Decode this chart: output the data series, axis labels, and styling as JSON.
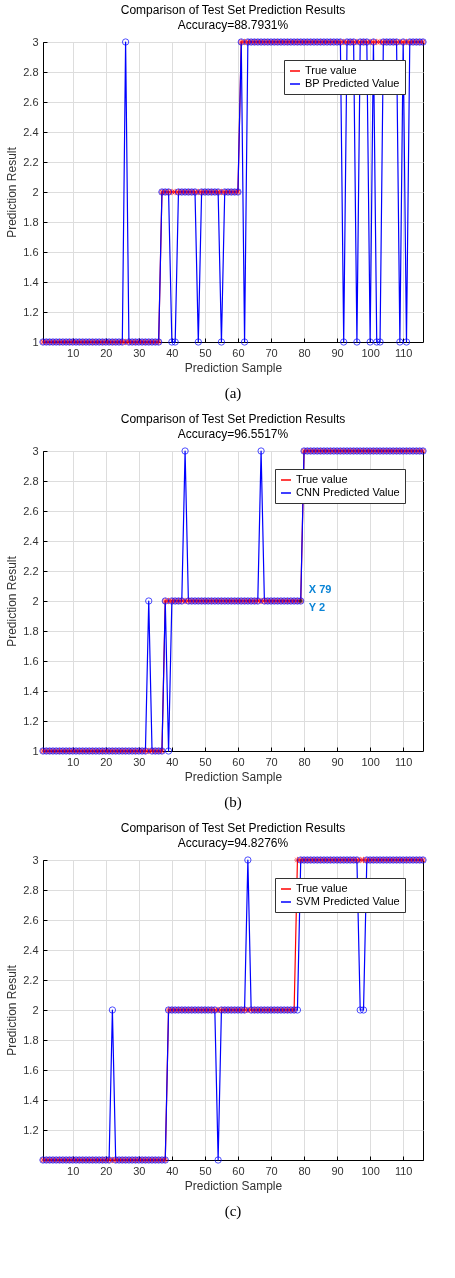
{
  "chart_data": [
    {
      "type": "line",
      "title": "Comparison of Test Set Prediction Results",
      "subtitle": "Accuracy=88.7931%",
      "xlabel": "Prediction Sample",
      "ylabel": "Prediction Result",
      "annotations": [
        "(a)"
      ],
      "legend": "top right",
      "grid": true,
      "xlim": [
        1,
        116
      ],
      "xticks": [
        10,
        20,
        30,
        40,
        50,
        60,
        70,
        80,
        90,
        100,
        110
      ],
      "ylim": [
        1,
        3
      ],
      "yticks": [
        1,
        1.2,
        1.4,
        1.6,
        1.8,
        2,
        2.2,
        2.4,
        2.6,
        2.8,
        3
      ],
      "x": [
        1,
        2,
        3,
        4,
        5,
        6,
        7,
        8,
        9,
        10,
        11,
        12,
        13,
        14,
        15,
        16,
        17,
        18,
        19,
        20,
        21,
        22,
        23,
        24,
        25,
        26,
        27,
        28,
        29,
        30,
        31,
        32,
        33,
        34,
        35,
        36,
        37,
        38,
        39,
        40,
        41,
        42,
        43,
        44,
        45,
        46,
        47,
        48,
        49,
        50,
        51,
        52,
        53,
        54,
        55,
        56,
        57,
        58,
        59,
        60,
        61,
        62,
        63,
        64,
        65,
        66,
        67,
        68,
        69,
        70,
        71,
        72,
        73,
        74,
        75,
        76,
        77,
        78,
        79,
        80,
        81,
        82,
        83,
        84,
        85,
        86,
        87,
        88,
        89,
        90,
        91,
        92,
        93,
        94,
        95,
        96,
        97,
        98,
        99,
        100,
        101,
        102,
        103,
        104,
        105,
        106,
        107,
        108,
        109,
        110,
        111,
        112,
        113,
        114,
        115,
        116
      ],
      "series": [
        {
          "name": "True value",
          "color": "#ff0000",
          "marker": "cross",
          "values": [
            1,
            1,
            1,
            1,
            1,
            1,
            1,
            1,
            1,
            1,
            1,
            1,
            1,
            1,
            1,
            1,
            1,
            1,
            1,
            1,
            1,
            1,
            1,
            1,
            1,
            1,
            1,
            1,
            1,
            1,
            1,
            1,
            1,
            1,
            1,
            1,
            2,
            2,
            2,
            2,
            2,
            2,
            2,
            2,
            2,
            2,
            2,
            2,
            2,
            2,
            2,
            2,
            2,
            2,
            2,
            2,
            2,
            2,
            2,
            2,
            3,
            3,
            3,
            3,
            3,
            3,
            3,
            3,
            3,
            3,
            3,
            3,
            3,
            3,
            3,
            3,
            3,
            3,
            3,
            3,
            3,
            3,
            3,
            3,
            3,
            3,
            3,
            3,
            3,
            3,
            3,
            3,
            3,
            3,
            3,
            3,
            3,
            3,
            3,
            3,
            3,
            3,
            3,
            3,
            3,
            3,
            3,
            3,
            3,
            3,
            3,
            3,
            3,
            3,
            3,
            3
          ]
        },
        {
          "name": "BP Predicted Value",
          "color": "#0000ff",
          "marker": "circle",
          "values": [
            1,
            1,
            1,
            1,
            1,
            1,
            1,
            1,
            1,
            1,
            1,
            1,
            1,
            1,
            1,
            1,
            1,
            1,
            1,
            1,
            1,
            1,
            1,
            1,
            1,
            3,
            1,
            1,
            1,
            1,
            1,
            1,
            1,
            1,
            1,
            1,
            2,
            2,
            2,
            1,
            1,
            2,
            2,
            2,
            2,
            2,
            2,
            1,
            2,
            2,
            2,
            2,
            2,
            2,
            1,
            2,
            2,
            2,
            2,
            2,
            3,
            1,
            3,
            3,
            3,
            3,
            3,
            3,
            3,
            3,
            3,
            3,
            3,
            3,
            3,
            3,
            3,
            3,
            3,
            3,
            3,
            3,
            3,
            3,
            3,
            3,
            3,
            3,
            3,
            3,
            3,
            1,
            3,
            3,
            3,
            1,
            3,
            3,
            3,
            1,
            3,
            1,
            1,
            3,
            3,
            3,
            3,
            3,
            1,
            3,
            1,
            3,
            3,
            3,
            3,
            3
          ]
        }
      ]
    },
    {
      "type": "line",
      "title": "Comparison of Test Set Prediction Results",
      "subtitle": "Accuracy=96.5517%",
      "xlabel": "Prediction Sample",
      "ylabel": "Prediction Result",
      "annotations": [
        "(b)",
        {
          "text": "X 79\nY 2",
          "x": 79,
          "y": 2
        }
      ],
      "legend": "top right",
      "grid": true,
      "xlim": [
        1,
        116
      ],
      "xticks": [
        10,
        20,
        30,
        40,
        50,
        60,
        70,
        80,
        90,
        100,
        110
      ],
      "ylim": [
        1,
        3
      ],
      "yticks": [
        1,
        1.2,
        1.4,
        1.6,
        1.8,
        2,
        2.2,
        2.4,
        2.6,
        2.8,
        3
      ],
      "x": [
        1,
        2,
        3,
        4,
        5,
        6,
        7,
        8,
        9,
        10,
        11,
        12,
        13,
        14,
        15,
        16,
        17,
        18,
        19,
        20,
        21,
        22,
        23,
        24,
        25,
        26,
        27,
        28,
        29,
        30,
        31,
        32,
        33,
        34,
        35,
        36,
        37,
        38,
        39,
        40,
        41,
        42,
        43,
        44,
        45,
        46,
        47,
        48,
        49,
        50,
        51,
        52,
        53,
        54,
        55,
        56,
        57,
        58,
        59,
        60,
        61,
        62,
        63,
        64,
        65,
        66,
        67,
        68,
        69,
        70,
        71,
        72,
        73,
        74,
        75,
        76,
        77,
        78,
        79,
        80,
        81,
        82,
        83,
        84,
        85,
        86,
        87,
        88,
        89,
        90,
        91,
        92,
        93,
        94,
        95,
        96,
        97,
        98,
        99,
        100,
        101,
        102,
        103,
        104,
        105,
        106,
        107,
        108,
        109,
        110,
        111,
        112,
        113,
        114,
        115,
        116
      ],
      "series": [
        {
          "name": "True value",
          "color": "#ff0000",
          "marker": "cross",
          "values": [
            1,
            1,
            1,
            1,
            1,
            1,
            1,
            1,
            1,
            1,
            1,
            1,
            1,
            1,
            1,
            1,
            1,
            1,
            1,
            1,
            1,
            1,
            1,
            1,
            1,
            1,
            1,
            1,
            1,
            1,
            1,
            1,
            1,
            1,
            1,
            1,
            1,
            2,
            2,
            2,
            2,
            2,
            2,
            2,
            2,
            2,
            2,
            2,
            2,
            2,
            2,
            2,
            2,
            2,
            2,
            2,
            2,
            2,
            2,
            2,
            2,
            2,
            2,
            2,
            2,
            2,
            2,
            2,
            2,
            2,
            2,
            2,
            2,
            2,
            2,
            2,
            2,
            2,
            2,
            3,
            3,
            3,
            3,
            3,
            3,
            3,
            3,
            3,
            3,
            3,
            3,
            3,
            3,
            3,
            3,
            3,
            3,
            3,
            3,
            3,
            3,
            3,
            3,
            3,
            3,
            3,
            3,
            3,
            3,
            3,
            3,
            3,
            3,
            3,
            3,
            3
          ]
        },
        {
          "name": "CNN Predicted Value",
          "color": "#0000ff",
          "marker": "circle",
          "values": [
            1,
            1,
            1,
            1,
            1,
            1,
            1,
            1,
            1,
            1,
            1,
            1,
            1,
            1,
            1,
            1,
            1,
            1,
            1,
            1,
            1,
            1,
            1,
            1,
            1,
            1,
            1,
            1,
            1,
            1,
            1,
            1,
            2,
            1,
            1,
            1,
            1,
            2,
            1,
            2,
            2,
            2,
            2,
            3,
            2,
            2,
            2,
            2,
            2,
            2,
            2,
            2,
            2,
            2,
            2,
            2,
            2,
            2,
            2,
            2,
            2,
            2,
            2,
            2,
            2,
            2,
            3,
            2,
            2,
            2,
            2,
            2,
            2,
            2,
            2,
            2,
            2,
            2,
            2,
            3,
            3,
            3,
            3,
            3,
            3,
            3,
            3,
            3,
            3,
            3,
            3,
            3,
            3,
            3,
            3,
            3,
            3,
            3,
            3,
            3,
            3,
            3,
            3,
            3,
            3,
            3,
            3,
            3,
            3,
            3,
            3,
            3,
            3,
            3,
            3,
            3
          ]
        }
      ]
    },
    {
      "type": "line",
      "title": "Comparison of Test Set Prediction Results",
      "subtitle": "Accuracy=94.8276%",
      "xlabel": "Prediction Sample",
      "ylabel": "Prediction Result",
      "annotations": [
        "(c)"
      ],
      "legend": "top right",
      "grid": true,
      "xlim": [
        1,
        116
      ],
      "xticks": [
        10,
        20,
        30,
        40,
        50,
        60,
        70,
        80,
        90,
        100,
        110
      ],
      "ylim": [
        1,
        3
      ],
      "yticks": [
        1.2,
        1.4,
        1.6,
        1.8,
        2,
        2.2,
        2.4,
        2.6,
        2.8,
        3
      ],
      "x": [
        1,
        2,
        3,
        4,
        5,
        6,
        7,
        8,
        9,
        10,
        11,
        12,
        13,
        14,
        15,
        16,
        17,
        18,
        19,
        20,
        21,
        22,
        23,
        24,
        25,
        26,
        27,
        28,
        29,
        30,
        31,
        32,
        33,
        34,
        35,
        36,
        37,
        38,
        39,
        40,
        41,
        42,
        43,
        44,
        45,
        46,
        47,
        48,
        49,
        50,
        51,
        52,
        53,
        54,
        55,
        56,
        57,
        58,
        59,
        60,
        61,
        62,
        63,
        64,
        65,
        66,
        67,
        68,
        69,
        70,
        71,
        72,
        73,
        74,
        75,
        76,
        77,
        78,
        79,
        80,
        81,
        82,
        83,
        84,
        85,
        86,
        87,
        88,
        89,
        90,
        91,
        92,
        93,
        94,
        95,
        96,
        97,
        98,
        99,
        100,
        101,
        102,
        103,
        104,
        105,
        106,
        107,
        108,
        109,
        110,
        111,
        112,
        113,
        114,
        115,
        116
      ],
      "series": [
        {
          "name": "True value",
          "color": "#ff0000",
          "marker": "cross",
          "values": [
            1,
            1,
            1,
            1,
            1,
            1,
            1,
            1,
            1,
            1,
            1,
            1,
            1,
            1,
            1,
            1,
            1,
            1,
            1,
            1,
            1,
            1,
            1,
            1,
            1,
            1,
            1,
            1,
            1,
            1,
            1,
            1,
            1,
            1,
            1,
            1,
            1,
            1,
            2,
            2,
            2,
            2,
            2,
            2,
            2,
            2,
            2,
            2,
            2,
            2,
            2,
            2,
            2,
            2,
            2,
            2,
            2,
            2,
            2,
            2,
            2,
            2,
            2,
            2,
            2,
            2,
            2,
            2,
            2,
            2,
            2,
            2,
            2,
            2,
            2,
            2,
            2,
            3,
            3,
            3,
            3,
            3,
            3,
            3,
            3,
            3,
            3,
            3,
            3,
            3,
            3,
            3,
            3,
            3,
            3,
            3,
            3,
            3,
            3,
            3,
            3,
            3,
            3,
            3,
            3,
            3,
            3,
            3,
            3,
            3,
            3,
            3,
            3,
            3,
            3,
            3
          ]
        },
        {
          "name": "SVM Predicted Value",
          "color": "#0000ff",
          "marker": "circle",
          "values": [
            1,
            1,
            1,
            1,
            1,
            1,
            1,
            1,
            1,
            1,
            1,
            1,
            1,
            1,
            1,
            1,
            1,
            1,
            1,
            1,
            1,
            2,
            1,
            1,
            1,
            1,
            1,
            1,
            1,
            1,
            1,
            1,
            1,
            1,
            1,
            1,
            1,
            1,
            2,
            2,
            2,
            2,
            2,
            2,
            2,
            2,
            2,
            2,
            2,
            2,
            2,
            2,
            2,
            1,
            2,
            2,
            2,
            2,
            2,
            2,
            2,
            2,
            3,
            2,
            2,
            2,
            2,
            2,
            2,
            2,
            2,
            2,
            2,
            2,
            2,
            2,
            2,
            2,
            3,
            3,
            3,
            3,
            3,
            3,
            3,
            3,
            3,
            3,
            3,
            3,
            3,
            3,
            3,
            3,
            3,
            3,
            2,
            2,
            3,
            3,
            3,
            3,
            3,
            3,
            3,
            3,
            3,
            3,
            3,
            3,
            3,
            3,
            3,
            3,
            3,
            3
          ]
        }
      ]
    }
  ]
}
